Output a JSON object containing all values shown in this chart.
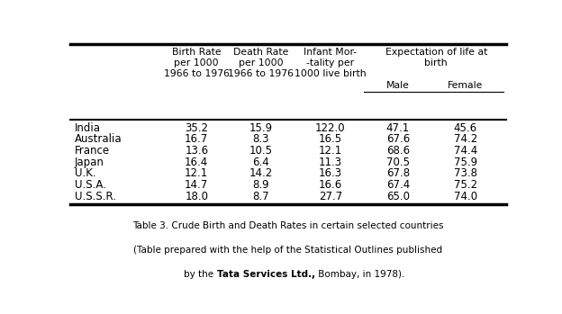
{
  "countries": [
    "India",
    "Australia",
    "France",
    "Japan",
    "U.K.",
    "U.S.A.",
    "U.S.S.R."
  ],
  "birth_rate": [
    "35.2",
    "16.7",
    "13.6",
    "16.4",
    "12.1",
    "14.7",
    "18.0"
  ],
  "death_rate": [
    "15.9",
    "8.3",
    "10.5",
    "6.4",
    "14.2",
    "8.9",
    "8.7"
  ],
  "infant_mortality": [
    "122.0",
    "16.5",
    "12.1",
    "11.3",
    "16.3",
    "16.6",
    "27.7"
  ],
  "male": [
    "47.1",
    "67.6",
    "68.6",
    "70.5",
    "67.8",
    "67.4",
    "65.0"
  ],
  "female": [
    "45.6",
    "74.2",
    "74.4",
    "75.9",
    "73.8",
    "75.2",
    "74.0"
  ],
  "caption_line1": "Table 3. Crude Birth and Death Rates in certain selected countries",
  "caption_line2": "(Table prepared with the help of the Statistical Outlines published",
  "caption_line3_normal1": "by the ",
  "caption_line3_bold": "Tata Services Ltd.,",
  "caption_line3_normal2": " Bombay, in 1978).",
  "bg_color": "#ffffff",
  "text_color": "#000000",
  "line_color": "#000000"
}
